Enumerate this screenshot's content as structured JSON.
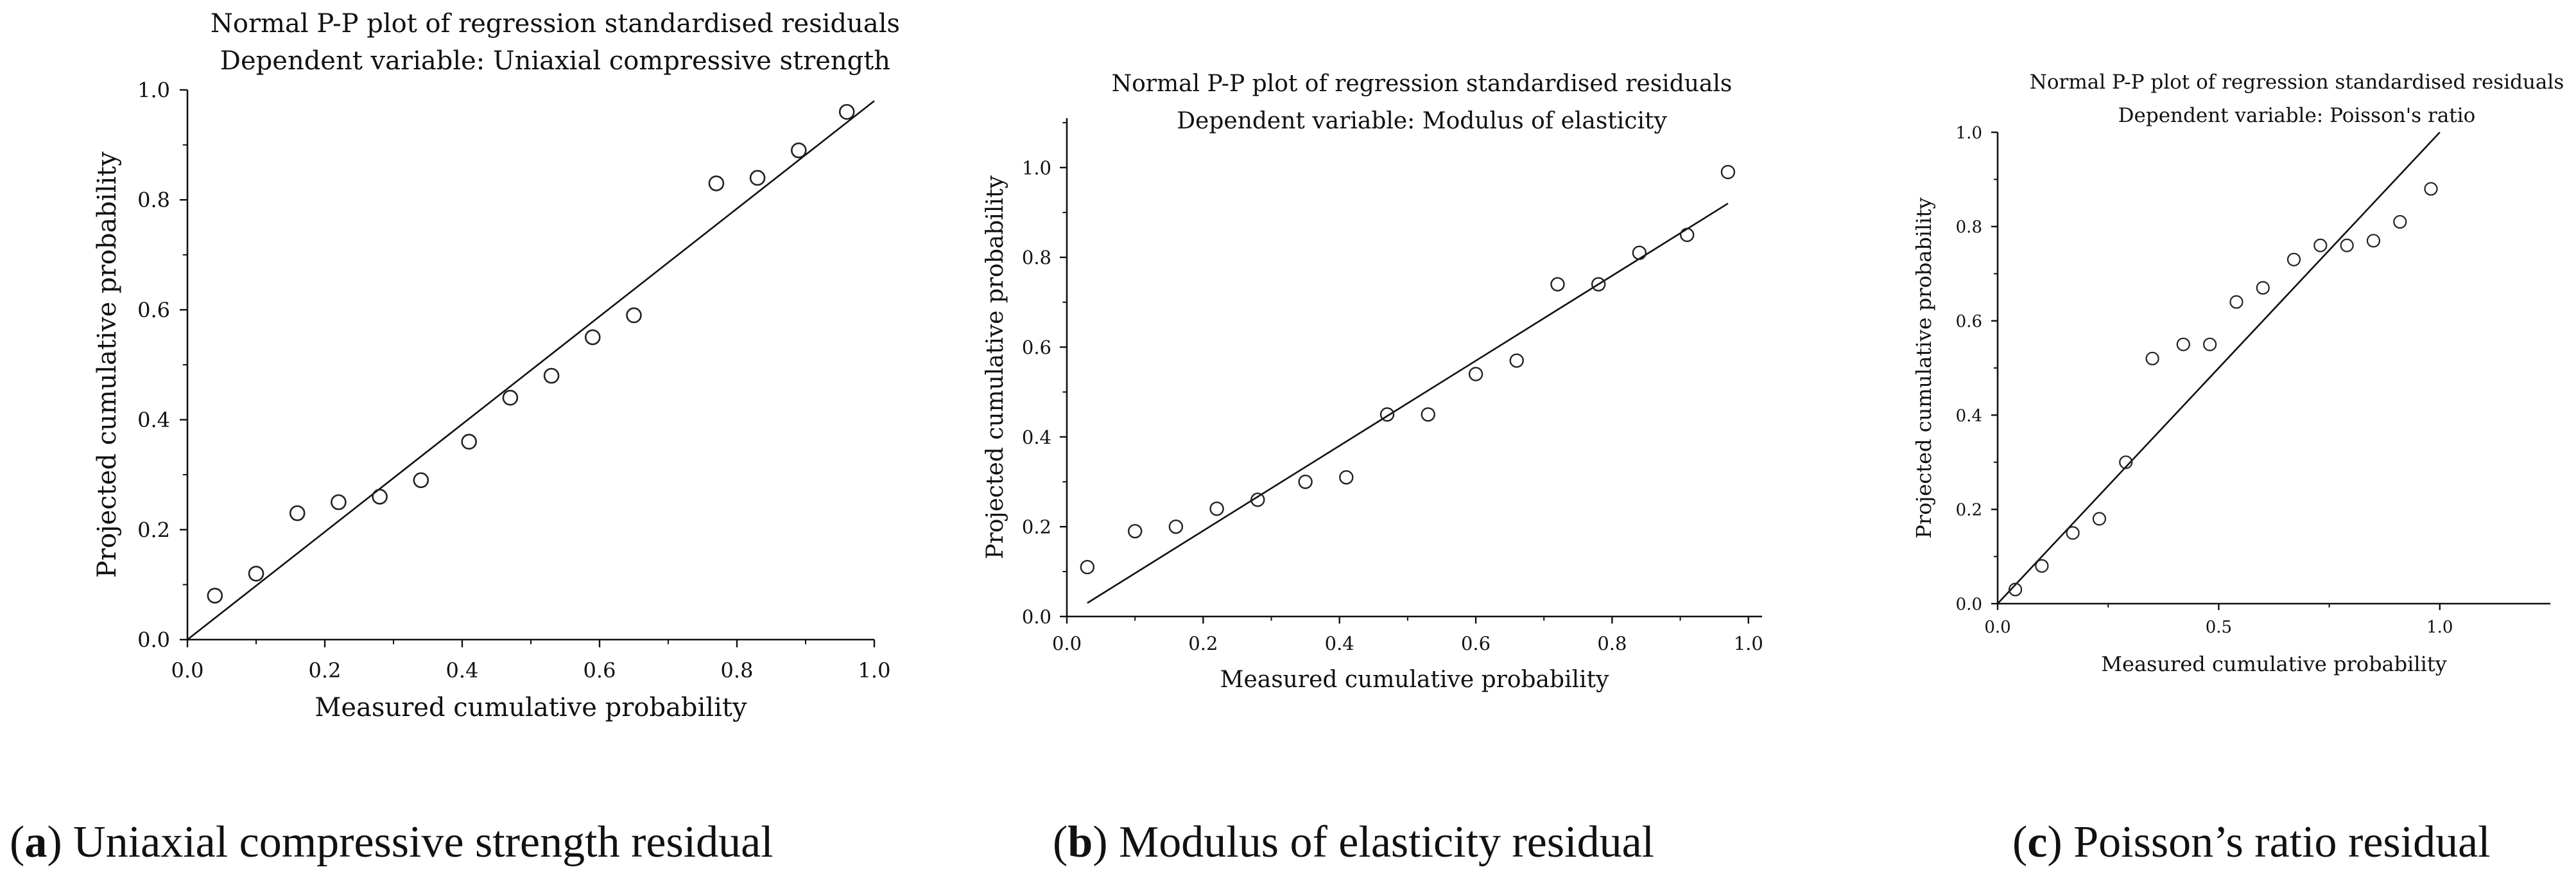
{
  "chart_data": [
    {
      "type": "scatter",
      "title": "Normal P-P plot of regression standardised residuals",
      "subtitle": "Dependent variable: Uniaxial compressive strength",
      "xlabel": "Measured cumulative probability",
      "ylabel": "Projected cumulative probability",
      "xlim": [
        0,
        1
      ],
      "ylim": [
        0,
        1
      ],
      "xticks": [
        "0.0",
        "0.2",
        "0.4",
        "0.6",
        "0.8",
        "1.0"
      ],
      "yticks": [
        "0.0",
        "0.2",
        "0.4",
        "0.6",
        "0.8",
        "1.0"
      ],
      "grid": false,
      "reference_line": [
        [
          0,
          0
        ],
        [
          1,
          0.98
        ]
      ],
      "x": [
        0.04,
        0.1,
        0.16,
        0.22,
        0.28,
        0.34,
        0.41,
        0.47,
        0.53,
        0.59,
        0.65,
        0.77,
        0.83,
        0.89,
        0.96
      ],
      "y": [
        0.08,
        0.12,
        0.23,
        0.25,
        0.26,
        0.29,
        0.36,
        0.44,
        0.48,
        0.55,
        0.59,
        0.83,
        0.84,
        0.89,
        0.96
      ],
      "caption_letter": "a",
      "caption_text": "Uniaxial compressive strength residual"
    },
    {
      "type": "scatter",
      "title": "Normal P-P plot of regression standardised residuals",
      "subtitle": "Dependent variable: Modulus of elasticity",
      "xlabel": "Measured cumulative probability",
      "ylabel": "Projected cumulative probability",
      "xlim": [
        0,
        1.02
      ],
      "ylim": [
        0,
        1.11
      ],
      "xticks": [
        "0.0",
        "0.2",
        "0.4",
        "0.6",
        "0.8",
        "1.0"
      ],
      "yticks": [
        "0.0",
        "0.2",
        "0.4",
        "0.6",
        "0.8",
        "1.0"
      ],
      "grid": false,
      "reference_line": [
        [
          0.03,
          0.03
        ],
        [
          0.97,
          0.92
        ]
      ],
      "x": [
        0.03,
        0.1,
        0.16,
        0.22,
        0.28,
        0.35,
        0.41,
        0.47,
        0.53,
        0.6,
        0.66,
        0.72,
        0.78,
        0.84,
        0.91,
        0.97
      ],
      "y": [
        0.11,
        0.19,
        0.2,
        0.24,
        0.26,
        0.3,
        0.31,
        0.45,
        0.45,
        0.54,
        0.57,
        0.74,
        0.74,
        0.81,
        0.85,
        0.99
      ],
      "caption_letter": "b",
      "caption_text": "Modulus of elasticity residual"
    },
    {
      "type": "scatter",
      "title": "Normal P-P plot of regression standardised residuals",
      "subtitle": "Dependent variable: Poisson's ratio",
      "xlabel": "Measured cumulative probability",
      "ylabel": "Projected cumulative probability",
      "xlim": [
        0,
        1.25
      ],
      "ylim": [
        0,
        1.0
      ],
      "xticks": [
        "0.0",
        "0.5",
        "1.0"
      ],
      "yticks": [
        "0.0",
        "0.2",
        "0.4",
        "0.6",
        "0.8",
        "1.0"
      ],
      "grid": false,
      "reference_line": [
        [
          0,
          0
        ],
        [
          1.0,
          1.0
        ]
      ],
      "x": [
        0.04,
        0.1,
        0.17,
        0.23,
        0.29,
        0.35,
        0.42,
        0.48,
        0.54,
        0.6,
        0.67,
        0.73,
        0.79,
        0.85,
        0.91,
        0.98
      ],
      "y": [
        0.03,
        0.08,
        0.15,
        0.18,
        0.3,
        0.52,
        0.55,
        0.55,
        0.64,
        0.67,
        0.73,
        0.76,
        0.76,
        0.77,
        0.81,
        0.88
      ],
      "caption_letter": "c",
      "caption_text": "Poisson’s ratio residual"
    }
  ]
}
